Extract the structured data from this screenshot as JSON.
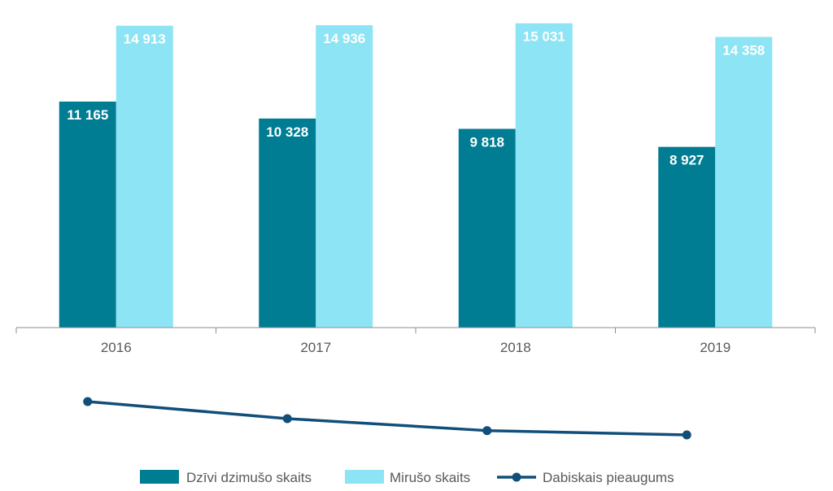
{
  "chart_data": {
    "type": "bar",
    "categories": [
      "2016",
      "2017",
      "2018",
      "2019"
    ],
    "ylim": [
      0,
      15500
    ],
    "grid": false,
    "legend_position": "bottom",
    "series": [
      {
        "name": "Dzīvi dzimušo skaits",
        "kind": "bar",
        "color": "#007d93",
        "values": [
          11165,
          10328,
          9818,
          8927
        ],
        "labels": [
          "11 165",
          "10 328",
          "9 818",
          "8 927"
        ]
      },
      {
        "name": "Mirušo skaits",
        "kind": "bar",
        "color": "#8ce4f4",
        "values": [
          14913,
          14936,
          15031,
          14358
        ],
        "labels": [
          "14 913",
          "14 936",
          "15 031",
          "14 358"
        ]
      },
      {
        "name": "Dabiskais pieaugums",
        "kind": "line",
        "color": "#114e7a",
        "values": [
          -3748,
          -4608,
          -5213,
          -5431
        ]
      }
    ]
  }
}
